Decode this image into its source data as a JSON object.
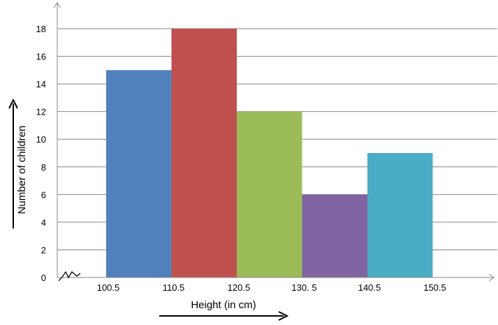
{
  "chart_data": {
    "type": "bar",
    "categories": [
      "100.5-110.5",
      "110.5-120.5",
      "120.5-130.5",
      "130.5-140.5",
      "140.5-150.5"
    ],
    "values": [
      15,
      18,
      12,
      6,
      9
    ],
    "bar_colors": [
      "#4F81BD",
      "#C0504D",
      "#9BBB59",
      "#8064A2",
      "#4BACC6"
    ],
    "x_tick_labels": [
      "100.5",
      "110.5",
      "120.5",
      "130. 5",
      "140.5",
      "150.5"
    ],
    "y_ticks": [
      0,
      2,
      4,
      6,
      8,
      10,
      12,
      14,
      16,
      18
    ],
    "ylim": [
      0,
      18
    ],
    "grid": true,
    "xlabel": "Height (in cm)",
    "ylabel": "Number of children"
  }
}
